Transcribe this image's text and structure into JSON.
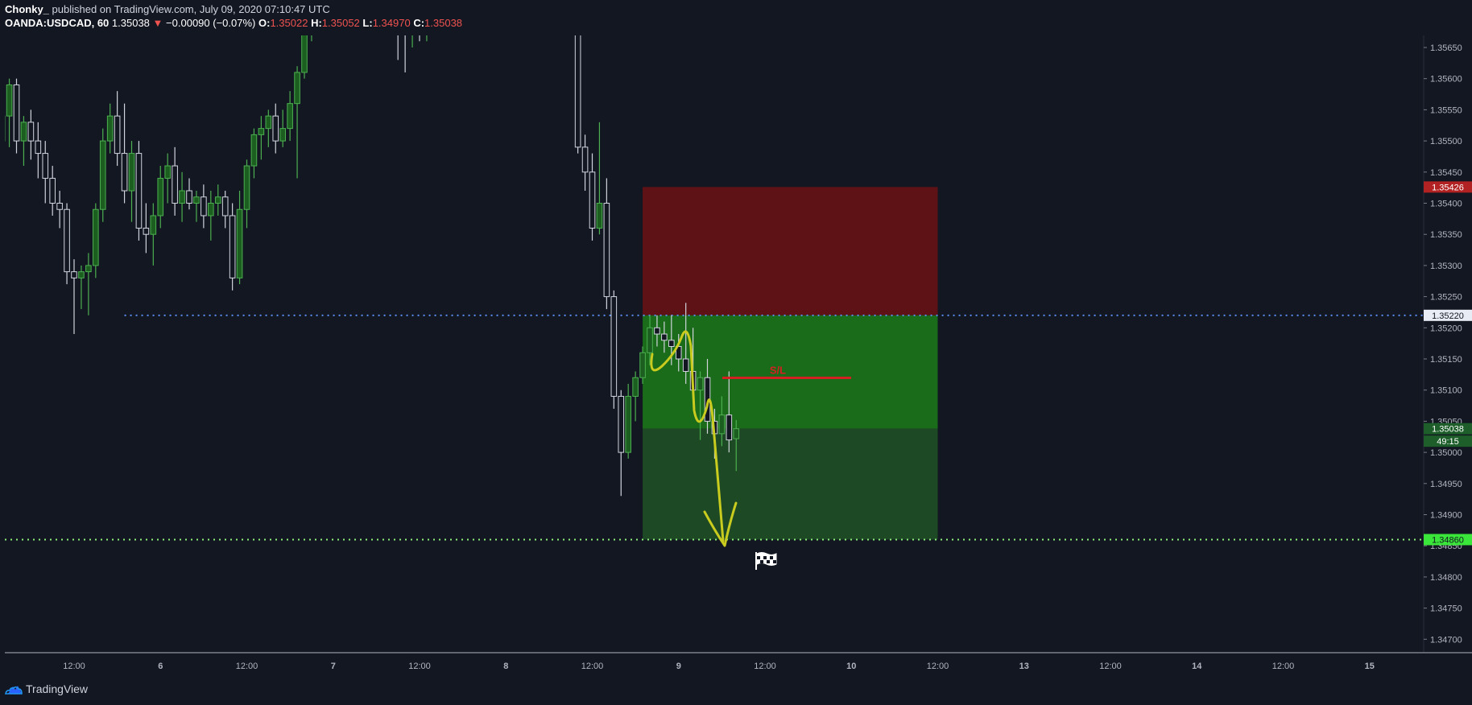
{
  "header": {
    "author": "Chonky_",
    "published": "published on TradingView.com, July 09, 2020 07:10:47 UTC",
    "symbol": "OANDA:USDCAD, 60",
    "last": "1.35038",
    "change_arrow": "▼",
    "change": "−0.00090 (−0.07%)",
    "o_label": "O:",
    "o_val": "1.35022",
    "h_label": "H:",
    "h_val": "1.35052",
    "l_label": "L:",
    "l_val": "1.34970",
    "c_label": "C:",
    "c_val": "1.35038"
  },
  "footer": {
    "brand": "TradingView",
    "logo_icon": "tradingview-cloud-icon",
    "flag_icon": "checkered-flag-icon"
  },
  "colors": {
    "background": "#131722",
    "up": "#4caf50",
    "down": "#d1d4dc",
    "stop_zone": "#5f1215",
    "target_zone": "#1a6b1a",
    "target_zone_dark": "#1d4a24",
    "support_line": "#5b8def",
    "target_line": "#8ef07a",
    "annotation": "#c9cc1e",
    "sl_line": "#d32020"
  },
  "chart_data": {
    "type": "candlestick",
    "ylim": [
      1.34675,
      1.35675
    ],
    "y_ticks": [
      "1.35650",
      "1.35600",
      "1.35550",
      "1.35500",
      "1.35450",
      "1.35400",
      "1.35350",
      "1.35300",
      "1.35250",
      "1.35200",
      "1.35150",
      "1.35100",
      "1.35050",
      "1.35000",
      "1.34950",
      "1.34900",
      "1.34850",
      "1.34800",
      "1.34750",
      "1.34700"
    ],
    "x_ticks": [
      "12:00",
      "6",
      "12:00",
      "7",
      "12:00",
      "8",
      "12:00",
      "9",
      "12:00",
      "10",
      "12:00",
      "13",
      "12:00",
      "14",
      "12:00",
      "15"
    ],
    "price_labels": [
      {
        "text": "1.35426",
        "value": 1.35426,
        "color": "#b22222"
      },
      {
        "text": "1.35220",
        "value": 1.3522,
        "color": "#e8ecf5"
      },
      {
        "text": "1.35038",
        "value": 1.35038,
        "color": "#1d5e2a"
      },
      {
        "text": "49:15",
        "value": 1.35018,
        "color": "#1d5e2a"
      },
      {
        "text": "1.34860",
        "value": 1.3486,
        "color": "#39e639"
      }
    ],
    "horizontal_lines": [
      {
        "name": "support",
        "value": 1.3522,
        "style": "dotted",
        "from_date": "5 Jun 2020 19:00"
      },
      {
        "name": "target",
        "value": 1.3486,
        "style": "dotted"
      }
    ],
    "position": {
      "type": "short",
      "entry": 1.3522,
      "stop": 1.35426,
      "target": 1.3486,
      "current": 1.35038,
      "start": "8 Jul 2020 19:00",
      "end": "10 Jul 2020 12:00"
    },
    "annotations": [
      {
        "text": "S/L",
        "value": 1.3513
      }
    ],
    "candles": [
      {
        "t": "4 Jun 2020 08:00",
        "o": 1.3566,
        "h": 1.3571,
        "l": 1.3558,
        "c": 1.3561
      },
      {
        "t": "4 Jun 2020 09:00",
        "o": 1.3561,
        "h": 1.3568,
        "l": 1.3557,
        "c": 1.3565
      },
      {
        "t": "4 Jun 2020 10:00",
        "o": 1.3565,
        "h": 1.3572,
        "l": 1.356,
        "c": 1.3568
      },
      {
        "t": "4 Jun 2020 11:00",
        "o": 1.3568,
        "h": 1.3571,
        "l": 1.3552,
        "c": 1.3556
      },
      {
        "t": "4 Jun 2020 12:00",
        "o": 1.3556,
        "h": 1.357,
        "l": 1.3554,
        "c": 1.3568
      },
      {
        "t": "4 Jun 2020 13:00",
        "o": 1.3568,
        "h": 1.3572,
        "l": 1.3559,
        "c": 1.3561
      },
      {
        "t": "4 Jun 2020 14:00",
        "o": 1.3561,
        "h": 1.3572,
        "l": 1.3558,
        "c": 1.3569
      },
      {
        "t": "4 Jun 2020 15:00",
        "o": 1.3569,
        "h": 1.3573,
        "l": 1.3564,
        "c": 1.357
      },
      {
        "t": "4 Jun 2020 16:00",
        "o": 1.357,
        "h": 1.3574,
        "l": 1.356,
        "c": 1.3564
      },
      {
        "t": "4 Jun 2020 17:00",
        "o": 1.3564,
        "h": 1.3572,
        "l": 1.3562,
        "c": 1.357
      },
      {
        "t": "4 Jun 2020 18:00",
        "o": 1.357,
        "h": 1.3573,
        "l": 1.3566,
        "c": 1.3568
      },
      {
        "t": "4 Jun 2020 19:00",
        "o": 1.3568,
        "h": 1.3572,
        "l": 1.3561,
        "c": 1.3563
      },
      {
        "t": "4 Jun 2020 20:00",
        "o": 1.3563,
        "h": 1.357,
        "l": 1.3559,
        "c": 1.3561
      },
      {
        "t": "4 Jun 2020 21:00",
        "o": 1.3561,
        "h": 1.3568,
        "l": 1.3557,
        "c": 1.3566
      },
      {
        "t": "4 Jun 2020 22:00",
        "o": 1.3566,
        "h": 1.357,
        "l": 1.356,
        "c": 1.3561
      },
      {
        "t": "4 Jun 2020 23:00",
        "o": 1.3561,
        "h": 1.3569,
        "l": 1.3554,
        "c": 1.3557
      },
      {
        "t": "5 Jun 2020 00:00",
        "o": 1.3557,
        "h": 1.3564,
        "l": 1.3552,
        "c": 1.3553
      },
      {
        "t": "5 Jun 2020 01:00",
        "o": 1.3553,
        "h": 1.3559,
        "l": 1.3548,
        "c": 1.355
      },
      {
        "t": "5 Jun 2020 02:00",
        "o": 1.355,
        "h": 1.3556,
        "l": 1.3545,
        "c": 1.3554
      },
      {
        "t": "5 Jun 2020 03:00",
        "o": 1.3554,
        "h": 1.356,
        "l": 1.3549,
        "c": 1.3559
      },
      {
        "t": "5 Jun 2020 04:00",
        "o": 1.3559,
        "h": 1.356,
        "l": 1.3548,
        "c": 1.355
      },
      {
        "t": "5 Jun 2020 05:00",
        "o": 1.355,
        "h": 1.3554,
        "l": 1.3546,
        "c": 1.3553
      },
      {
        "t": "5 Jun 2020 06:00",
        "o": 1.3553,
        "h": 1.3555,
        "l": 1.3547,
        "c": 1.355
      },
      {
        "t": "5 Jun 2020 07:00",
        "o": 1.355,
        "h": 1.3553,
        "l": 1.3544,
        "c": 1.3548
      },
      {
        "t": "5 Jun 2020 08:00",
        "o": 1.3548,
        "h": 1.355,
        "l": 1.354,
        "c": 1.3544
      },
      {
        "t": "5 Jun 2020 09:00",
        "o": 1.3544,
        "h": 1.3546,
        "l": 1.3538,
        "c": 1.354
      },
      {
        "t": "5 Jun 2020 10:00",
        "o": 1.354,
        "h": 1.3542,
        "l": 1.3536,
        "c": 1.3539
      },
      {
        "t": "5 Jun 2020 11:00",
        "o": 1.3539,
        "h": 1.354,
        "l": 1.3527,
        "c": 1.3529
      },
      {
        "t": "5 Jun 2020 12:00",
        "o": 1.3529,
        "h": 1.3531,
        "l": 1.3519,
        "c": 1.3528
      },
      {
        "t": "5 Jun 2020 13:00",
        "o": 1.3528,
        "h": 1.353,
        "l": 1.3523,
        "c": 1.3529
      },
      {
        "t": "5 Jun 2020 14:00",
        "o": 1.3529,
        "h": 1.3532,
        "l": 1.3522,
        "c": 1.353
      },
      {
        "t": "5 Jun 2020 15:00",
        "o": 1.353,
        "h": 1.354,
        "l": 1.3528,
        "c": 1.3539
      },
      {
        "t": "5 Jun 2020 16:00",
        "o": 1.3539,
        "h": 1.3552,
        "l": 1.3537,
        "c": 1.355
      },
      {
        "t": "5 Jun 2020 17:00",
        "o": 1.355,
        "h": 1.3556,
        "l": 1.3548,
        "c": 1.3554
      },
      {
        "t": "5 Jun 2020 18:00",
        "o": 1.3554,
        "h": 1.3558,
        "l": 1.3546,
        "c": 1.3548
      },
      {
        "t": "5 Jun 2020 19:00",
        "o": 1.3548,
        "h": 1.3556,
        "l": 1.354,
        "c": 1.3542
      },
      {
        "t": "5 Jun 2020 20:00",
        "o": 1.3542,
        "h": 1.355,
        "l": 1.3537,
        "c": 1.3548
      },
      {
        "t": "5 Jun 2020 21:00",
        "o": 1.3548,
        "h": 1.355,
        "l": 1.3534,
        "c": 1.3536
      },
      {
        "t": "5 Jun 2020 22:00",
        "o": 1.3536,
        "h": 1.354,
        "l": 1.3532,
        "c": 1.3535
      },
      {
        "t": "5 Jun 2020 23:00",
        "o": 1.3535,
        "h": 1.354,
        "l": 1.353,
        "c": 1.3538
      },
      {
        "t": "6 Jun 2020 00:00",
        "o": 1.3538,
        "h": 1.3546,
        "l": 1.3536,
        "c": 1.3544
      },
      {
        "t": "6 Jun 2020 01:00",
        "o": 1.3544,
        "h": 1.3548,
        "l": 1.354,
        "c": 1.3546
      },
      {
        "t": "6 Jun 2020 02:00",
        "o": 1.3546,
        "h": 1.3549,
        "l": 1.3538,
        "c": 1.354
      },
      {
        "t": "6 Jun 2020 03:00",
        "o": 1.354,
        "h": 1.3545,
        "l": 1.3537,
        "c": 1.3542
      },
      {
        "t": "6 Jun 2020 04:00",
        "o": 1.3542,
        "h": 1.3544,
        "l": 1.3539,
        "c": 1.354
      },
      {
        "t": "6 Jun 2020 05:00",
        "o": 1.354,
        "h": 1.3542,
        "l": 1.3537,
        "c": 1.3541
      },
      {
        "t": "6 Jun 2020 06:00",
        "o": 1.3541,
        "h": 1.3543,
        "l": 1.3536,
        "c": 1.3538
      },
      {
        "t": "6 Jun 2020 07:00",
        "o": 1.3538,
        "h": 1.3542,
        "l": 1.3534,
        "c": 1.354
      },
      {
        "t": "6 Jun 2020 08:00",
        "o": 1.354,
        "h": 1.3543,
        "l": 1.3538,
        "c": 1.3541
      },
      {
        "t": "6 Jun 2020 09:00",
        "o": 1.3541,
        "h": 1.3542,
        "l": 1.3536,
        "c": 1.3538
      },
      {
        "t": "6 Jun 2020 10:00",
        "o": 1.3538,
        "h": 1.354,
        "l": 1.3526,
        "c": 1.3528
      },
      {
        "t": "6 Jun 2020 11:00",
        "o": 1.3528,
        "h": 1.3542,
        "l": 1.3527,
        "c": 1.3539
      },
      {
        "t": "6 Jun 2020 12:00",
        "o": 1.3539,
        "h": 1.3547,
        "l": 1.3536,
        "c": 1.3546
      },
      {
        "t": "6 Jun 2020 13:00",
        "o": 1.3546,
        "h": 1.3552,
        "l": 1.3544,
        "c": 1.3551
      },
      {
        "t": "6 Jun 2020 14:00",
        "o": 1.3551,
        "h": 1.3554,
        "l": 1.3547,
        "c": 1.3552
      },
      {
        "t": "6 Jun 2020 15:00",
        "o": 1.3552,
        "h": 1.3555,
        "l": 1.3549,
        "c": 1.3554
      },
      {
        "t": "6 Jun 2020 16:00",
        "o": 1.3554,
        "h": 1.3556,
        "l": 1.3548,
        "c": 1.355
      },
      {
        "t": "6 Jun 2020 17:00",
        "o": 1.355,
        "h": 1.3555,
        "l": 1.3549,
        "c": 1.3552
      },
      {
        "t": "6 Jun 2020 18:00",
        "o": 1.3552,
        "h": 1.3558,
        "l": 1.355,
        "c": 1.3556
      },
      {
        "t": "6 Jun 2020 19:00",
        "o": 1.3556,
        "h": 1.3562,
        "l": 1.3544,
        "c": 1.3561
      },
      {
        "t": "6 Jun 2020 20:00",
        "o": 1.3561,
        "h": 1.357,
        "l": 1.356,
        "c": 1.3569
      },
      {
        "t": "6 Jun 2020 21:00",
        "o": 1.3569,
        "h": 1.3574,
        "l": 1.3566,
        "c": 1.357
      },
      {
        "t": "7 Jun 2020 09:00",
        "o": 1.357,
        "h": 1.3574,
        "l": 1.3563,
        "c": 1.3569
      },
      {
        "t": "7 Jun 2020 10:00",
        "o": 1.3569,
        "h": 1.3573,
        "l": 1.3561,
        "c": 1.3568
      },
      {
        "t": "7 Jun 2020 11:00",
        "o": 1.3568,
        "h": 1.3572,
        "l": 1.3565,
        "c": 1.357
      },
      {
        "t": "7 Jun 2020 12:00",
        "o": 1.357,
        "h": 1.3573,
        "l": 1.3566,
        "c": 1.3569
      },
      {
        "t": "7 Jun 2020 13:00",
        "o": 1.3569,
        "h": 1.3571,
        "l": 1.3566,
        "c": 1.357
      },
      {
        "t": "8 Jun 2020 10:00",
        "o": 1.357,
        "h": 1.357,
        "l": 1.3548,
        "c": 1.3549
      },
      {
        "t": "8 Jun 2020 11:00",
        "o": 1.3549,
        "h": 1.3551,
        "l": 1.3542,
        "c": 1.3545
      },
      {
        "t": "8 Jun 2020 12:00",
        "o": 1.3545,
        "h": 1.3548,
        "l": 1.3534,
        "c": 1.3536
      },
      {
        "t": "8 Jun 2020 13:00",
        "o": 1.3536,
        "h": 1.3553,
        "l": 1.3535,
        "c": 1.354
      },
      {
        "t": "8 Jun 2020 14:00",
        "o": 1.354,
        "h": 1.3544,
        "l": 1.3523,
        "c": 1.3525
      },
      {
        "t": "8 Jun 2020 15:00",
        "o": 1.3525,
        "h": 1.3526,
        "l": 1.3507,
        "c": 1.3509
      },
      {
        "t": "8 Jun 2020 16:00",
        "o": 1.3509,
        "h": 1.351,
        "l": 1.3493,
        "c": 1.35
      },
      {
        "t": "8 Jun 2020 17:00",
        "o": 1.35,
        "h": 1.3511,
        "l": 1.3499,
        "c": 1.3509
      },
      {
        "t": "8 Jun 2020 18:00",
        "o": 1.3509,
        "h": 1.3513,
        "l": 1.3505,
        "c": 1.3512
      },
      {
        "t": "8 Jun 2020 19:00",
        "o": 1.3512,
        "h": 1.3517,
        "l": 1.3511,
        "c": 1.3516
      },
      {
        "t": "8 Jun 2020 20:00",
        "o": 1.3516,
        "h": 1.3522,
        "l": 1.3514,
        "c": 1.352
      },
      {
        "t": "8 Jun 2020 21:00",
        "o": 1.352,
        "h": 1.3522,
        "l": 1.3517,
        "c": 1.3519
      },
      {
        "t": "8 Jun 2020 22:00",
        "o": 1.3519,
        "h": 1.3521,
        "l": 1.3516,
        "c": 1.3518
      },
      {
        "t": "8 Jun 2020 23:00",
        "o": 1.3518,
        "h": 1.3522,
        "l": 1.3514,
        "c": 1.3517
      },
      {
        "t": "9 Jun 2020 00:00",
        "o": 1.3517,
        "h": 1.3519,
        "l": 1.3513,
        "c": 1.3515
      },
      {
        "t": "9 Jun 2020 01:00",
        "o": 1.3515,
        "h": 1.3524,
        "l": 1.3511,
        "c": 1.3513
      },
      {
        "t": "9 Jun 2020 02:00",
        "o": 1.3513,
        "h": 1.352,
        "l": 1.3508,
        "c": 1.351
      },
      {
        "t": "9 Jun 2020 03:00",
        "o": 1.351,
        "h": 1.3513,
        "l": 1.3502,
        "c": 1.3512
      },
      {
        "t": "9 Jun 2020 04:00",
        "o": 1.3512,
        "h": 1.3515,
        "l": 1.3503,
        "c": 1.3505
      },
      {
        "t": "9 Jun 2020 05:00",
        "o": 1.3505,
        "h": 1.3507,
        "l": 1.3499,
        "c": 1.3503
      },
      {
        "t": "9 Jun 2020 06:00",
        "o": 1.3503,
        "h": 1.3509,
        "l": 1.3501,
        "c": 1.3506
      },
      {
        "t": "9 Jun 2020 07:00",
        "o": 1.3506,
        "h": 1.3513,
        "l": 1.35,
        "c": 1.3502
      },
      {
        "t": "9 Jun 2020 08:00",
        "o": 1.35022,
        "h": 1.35052,
        "l": 1.3497,
        "c": 1.35038
      }
    ]
  }
}
